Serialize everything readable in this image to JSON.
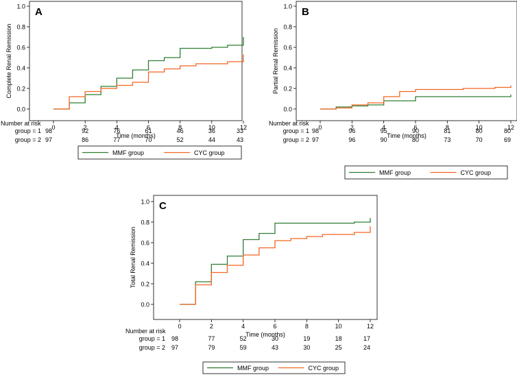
{
  "colors": {
    "mmf": "#2e7d32",
    "cyc": "#f26522",
    "axis": "#000000",
    "frame": "#000000"
  },
  "risk_table": {
    "title": "Number at risk",
    "row_labels": [
      "group = 1",
      "group = 2"
    ]
  },
  "chart_data": [
    {
      "type": "line",
      "panel_letter": "A",
      "title": "",
      "xlabel": "Time (months)",
      "ylabel": "Complete Renal Remission",
      "xlim": [
        0,
        12
      ],
      "ylim": [
        0,
        1
      ],
      "xticks": [
        "0",
        "2",
        "4",
        "6",
        "8",
        "10",
        "12"
      ],
      "yticks": [
        "0.0",
        "0.2",
        "0.4",
        "0.6",
        "0.8",
        "1.0"
      ],
      "legend": [
        "MMF group",
        "CYC group"
      ],
      "series": [
        {
          "name": "MMF group",
          "color_key": "mmf",
          "steps": [
            [
              0,
              0
            ],
            [
              1,
              0.06
            ],
            [
              2,
              0.14
            ],
            [
              3,
              0.22
            ],
            [
              4,
              0.3
            ],
            [
              5,
              0.38
            ],
            [
              6,
              0.47
            ],
            [
              7,
              0.5
            ],
            [
              8,
              0.59
            ],
            [
              10,
              0.6
            ],
            [
              11,
              0.62
            ],
            [
              12,
              0.7
            ]
          ]
        },
        {
          "name": "CYC group",
          "color_key": "cyc",
          "steps": [
            [
              0,
              0
            ],
            [
              1,
              0.12
            ],
            [
              2,
              0.17
            ],
            [
              3,
              0.2
            ],
            [
              4,
              0.23
            ],
            [
              5,
              0.26
            ],
            [
              6,
              0.36
            ],
            [
              7,
              0.39
            ],
            [
              8,
              0.42
            ],
            [
              9,
              0.44
            ],
            [
              11,
              0.46
            ],
            [
              12,
              0.53
            ]
          ]
        }
      ],
      "risk": {
        "times": [
          0,
          2,
          4,
          6,
          8,
          10,
          12
        ],
        "rows": [
          [
            98,
            92,
            76,
            61,
            46,
            36,
            33
          ],
          [
            97,
            86,
            77,
            70,
            52,
            44,
            43
          ]
        ]
      }
    },
    {
      "type": "line",
      "panel_letter": "B",
      "title": "",
      "xlabel": "Time (months)",
      "ylabel": "Partial Renal Remission",
      "xlim": [
        0,
        12
      ],
      "ylim": [
        0,
        1
      ],
      "xticks": [
        "0",
        "2",
        "4",
        "6",
        "8",
        "10",
        "12"
      ],
      "yticks": [
        "0.0",
        "0.2",
        "0.4",
        "0.6",
        "0.8",
        "1.0"
      ],
      "legend": [
        "MMF group",
        "CYC group"
      ],
      "series": [
        {
          "name": "MMF group",
          "color_key": "mmf",
          "steps": [
            [
              0,
              0
            ],
            [
              1,
              0.02
            ],
            [
              2,
              0.03
            ],
            [
              3,
              0.04
            ],
            [
              4,
              0.08
            ],
            [
              6,
              0.12
            ],
            [
              12,
              0.14
            ]
          ]
        },
        {
          "name": "CYC group",
          "color_key": "cyc",
          "steps": [
            [
              0,
              0
            ],
            [
              1,
              0.01
            ],
            [
              2,
              0.04
            ],
            [
              3,
              0.06
            ],
            [
              4,
              0.12
            ],
            [
              5,
              0.17
            ],
            [
              6,
              0.19
            ],
            [
              9,
              0.2
            ],
            [
              11,
              0.21
            ],
            [
              12,
              0.23
            ]
          ]
        }
      ],
      "risk": {
        "times": [
          0,
          2,
          4,
          6,
          8,
          10,
          12
        ],
        "rows": [
          [
            98,
            96,
            95,
            90,
            81,
            80,
            80
          ],
          [
            97,
            96,
            90,
            80,
            73,
            70,
            69
          ]
        ]
      }
    },
    {
      "type": "line",
      "panel_letter": "C",
      "title": "",
      "xlabel": "Time (months)",
      "ylabel": "Total Renal Remission",
      "xlim": [
        0,
        12
      ],
      "ylim": [
        0,
        1
      ],
      "xticks": [
        "0",
        "2",
        "4",
        "6",
        "8",
        "10",
        "12"
      ],
      "yticks": [
        "0.0",
        "0.2",
        "0.4",
        "0.6",
        "0.8",
        "1.0"
      ],
      "legend": [
        "MMF group",
        "CYC group"
      ],
      "series": [
        {
          "name": "MMF group",
          "color_key": "mmf",
          "steps": [
            [
              0,
              0
            ],
            [
              1,
              0.22
            ],
            [
              2,
              0.39
            ],
            [
              3,
              0.47
            ],
            [
              4,
              0.63
            ],
            [
              5,
              0.69
            ],
            [
              6,
              0.79
            ],
            [
              11,
              0.8
            ],
            [
              12,
              0.84
            ]
          ]
        },
        {
          "name": "CYC group",
          "color_key": "cyc",
          "steps": [
            [
              0,
              0
            ],
            [
              1,
              0.19
            ],
            [
              2,
              0.31
            ],
            [
              3,
              0.38
            ],
            [
              4,
              0.48
            ],
            [
              5,
              0.55
            ],
            [
              6,
              0.62
            ],
            [
              7,
              0.64
            ],
            [
              8,
              0.66
            ],
            [
              9,
              0.68
            ],
            [
              11,
              0.7
            ],
            [
              12,
              0.76
            ]
          ]
        }
      ],
      "risk": {
        "times": [
          0,
          2,
          4,
          6,
          8,
          10,
          12
        ],
        "rows": [
          [
            98,
            77,
            52,
            30,
            19,
            18,
            17
          ],
          [
            97,
            79,
            59,
            43,
            30,
            25,
            24
          ]
        ]
      }
    }
  ]
}
